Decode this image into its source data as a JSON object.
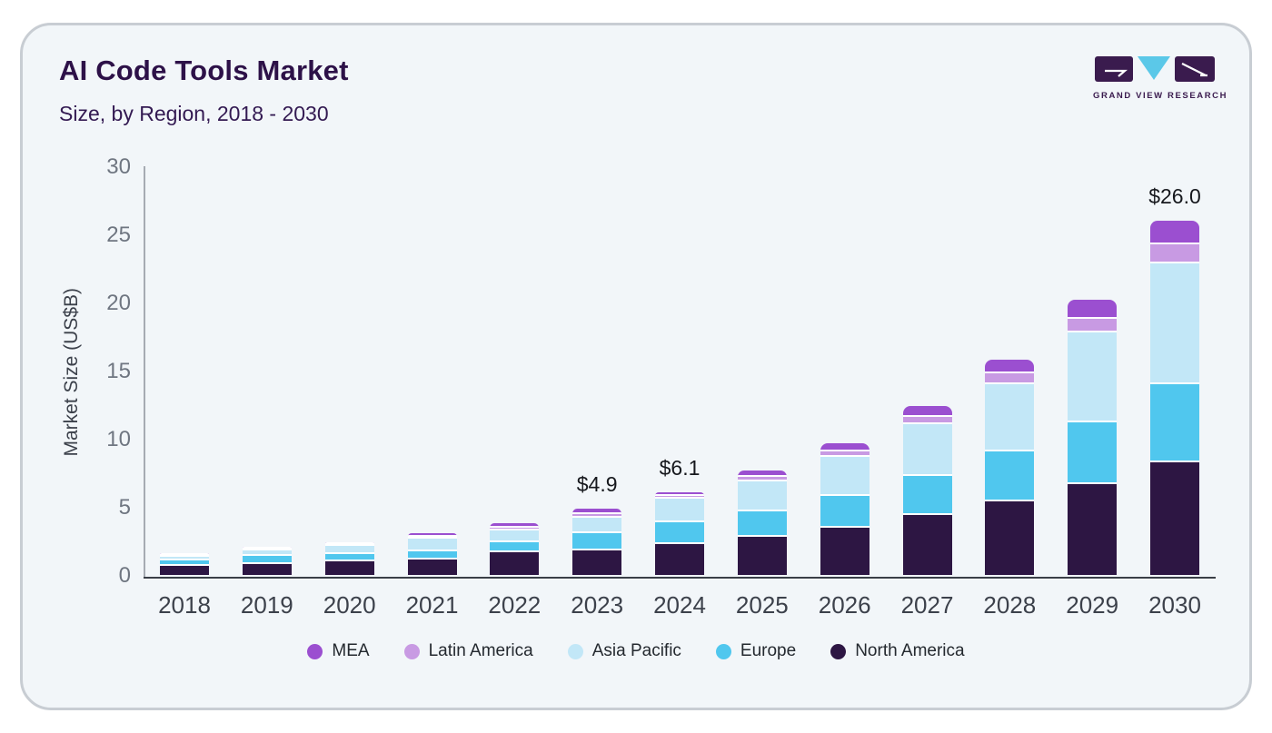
{
  "header": {
    "title": "AI Code Tools Market",
    "subtitle": "Size, by Region, 2018 - 2030"
  },
  "logo": {
    "name": "Grand View Research",
    "text": "GRAND VIEW RESEARCH"
  },
  "theme": {
    "page_bg": "#ffffff",
    "card_bg": "#f2f6f9",
    "card_border": "#c8cdd3",
    "title_color": "#2d1148",
    "subtitle_color": "#331a52",
    "tick_color": "#6f7681",
    "xtick_color": "#3c414b",
    "axis_line": "#a6abb3",
    "baseline": "#3a3f47",
    "legend_text": "#24292f",
    "annotation_color": "#16181d",
    "logo_dark": "#3a1b4e",
    "logo_blue": "#5bc8e8"
  },
  "chart_data": {
    "type": "bar",
    "stacked": true,
    "title": "AI Code Tools Market",
    "subtitle": "Size, by Region, 2018 - 2030",
    "xlabel": "",
    "ylabel": "Market Size (US$B)",
    "ylim": [
      0,
      30
    ],
    "yticks": [
      0,
      5,
      10,
      15,
      20,
      25,
      30
    ],
    "grid": false,
    "legend_position": "bottom",
    "categories": [
      2018,
      2019,
      2020,
      2021,
      2022,
      2023,
      2024,
      2025,
      2026,
      2027,
      2028,
      2029,
      2030
    ],
    "series": [
      {
        "name": "North America",
        "color": "#2d1643",
        "values": [
          0.7,
          0.8,
          1.0,
          1.15,
          1.7,
          1.8,
          2.3,
          2.8,
          3.5,
          4.4,
          5.4,
          6.7,
          8.3
        ]
      },
      {
        "name": "Europe",
        "color": "#50c7ee",
        "values": [
          0.35,
          0.6,
          0.55,
          0.6,
          0.7,
          1.3,
          1.6,
          1.9,
          2.3,
          2.9,
          3.7,
          4.5,
          5.7
        ]
      },
      {
        "name": "Asia Pacific",
        "color": "#c2e7f7",
        "values": [
          0.3,
          0.4,
          0.6,
          0.9,
          0.85,
          1.1,
          1.7,
          2.2,
          2.9,
          3.8,
          4.9,
          6.6,
          8.9
        ]
      },
      {
        "name": "Latin America",
        "color": "#c89ae3",
        "values": [
          0.07,
          0.04,
          0.1,
          0.15,
          0.2,
          0.3,
          0.2,
          0.3,
          0.4,
          0.5,
          0.8,
          1.0,
          1.4
        ]
      },
      {
        "name": "MEA",
        "color": "#9b4fd0",
        "values": [
          0.08,
          0.06,
          0.15,
          0.3,
          0.35,
          0.4,
          0.3,
          0.5,
          0.6,
          0.8,
          1.0,
          1.4,
          1.7
        ]
      }
    ],
    "totals": [
      1.5,
      1.9,
      2.4,
      3.1,
      3.8,
      4.9,
      6.1,
      7.7,
      9.7,
      12.4,
      15.8,
      20.2,
      26.0
    ],
    "annotations": [
      {
        "year": 2023,
        "label": "$4.9"
      },
      {
        "year": 2024,
        "label": "$6.1"
      },
      {
        "year": 2030,
        "label": "$26.0"
      }
    ],
    "legend": [
      "MEA",
      "Latin America",
      "Asia Pacific",
      "Europe",
      "North America"
    ]
  }
}
